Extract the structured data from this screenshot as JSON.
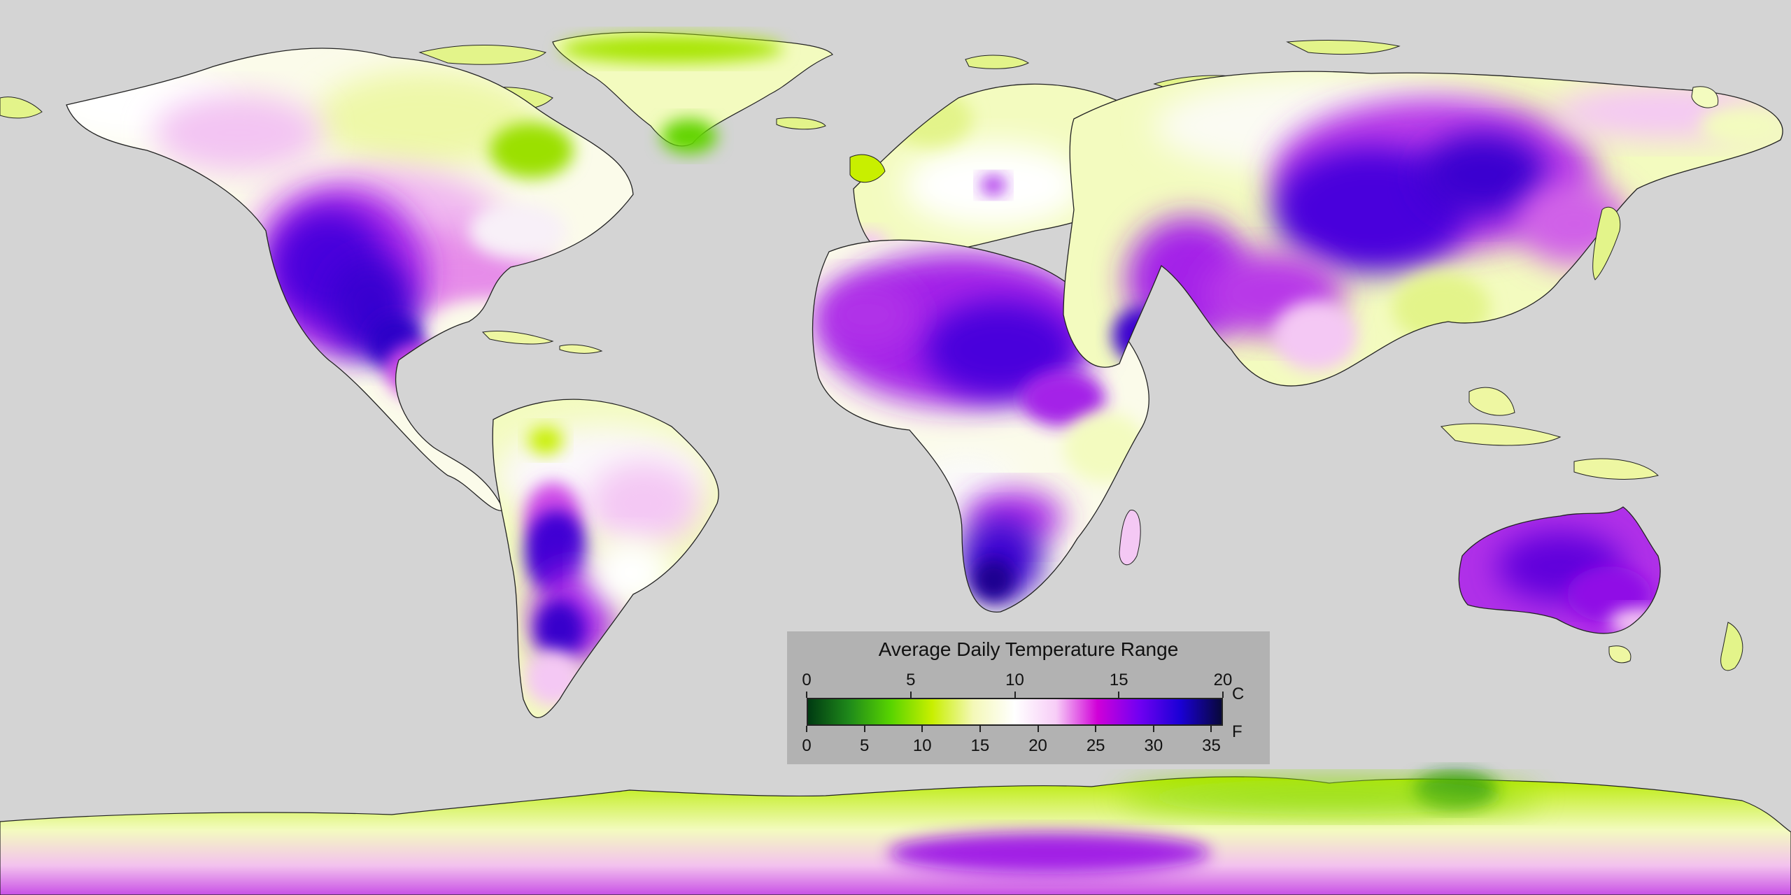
{
  "legend": {
    "title": "Average Daily Temperature Range",
    "celsius_unit": "C",
    "fahrenheit_unit": "F",
    "celsius_ticks": [
      "0",
      "5",
      "10",
      "15",
      "20"
    ],
    "fahrenheit_ticks": [
      "0",
      "5",
      "10",
      "15",
      "20",
      "25",
      "30",
      "35"
    ],
    "celsius_range": [
      0,
      20
    ],
    "colors": [
      "#003a12",
      "#1f8a1a",
      "#58d400",
      "#c8ef00",
      "#f4f8b8",
      "#ffffff",
      "#f7cdf7",
      "#d000d8",
      "#7200f2",
      "#1a00d6",
      "#08083a"
    ]
  },
  "map": {
    "ocean_color": "#d4d4d4",
    "land_colors": {
      "low": "#9be000",
      "mid_low": "#eef7a2",
      "neutral": "#ffffff",
      "mid_high": "#ec9af0",
      "high": "#9a10e6",
      "very_high": "#3b00d8"
    }
  }
}
